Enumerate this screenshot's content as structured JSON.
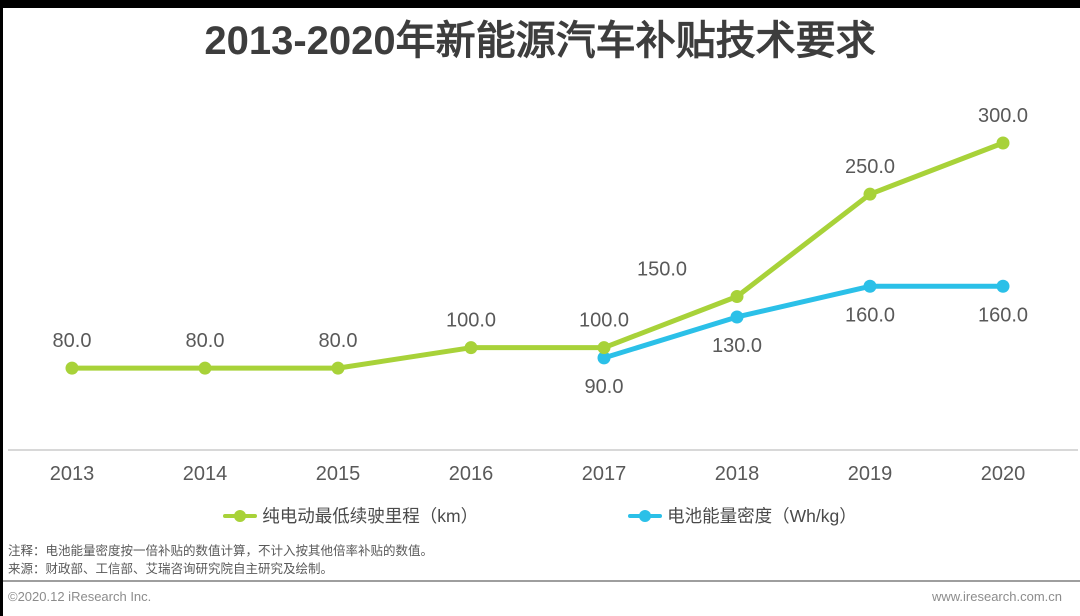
{
  "title": "2013-2020年新能源汽车补贴技术要求",
  "chart_data": {
    "type": "line",
    "title": "2013-2020年新能源汽车补贴技术要求",
    "categories": [
      "2013",
      "2014",
      "2015",
      "2016",
      "2017",
      "2018",
      "2019",
      "2020"
    ],
    "series": [
      {
        "name": "纯电动最低续驶里程（km）",
        "color": "#a8d239",
        "values": [
          80,
          80,
          80,
          100,
          100,
          150,
          250,
          300
        ],
        "labels": [
          "80.0",
          "80.0",
          "80.0",
          "100.0",
          "100.0",
          "150.0",
          "250.0",
          "300.0"
        ],
        "label_side": "above",
        "label_dx": [
          0,
          0,
          0,
          0,
          0,
          -75,
          0,
          0
        ]
      },
      {
        "name": "电池能量密度（Wh/kg）",
        "color": "#2bc0e8",
        "values": [
          null,
          null,
          null,
          null,
          90,
          130,
          160,
          160
        ],
        "labels": [
          null,
          null,
          null,
          null,
          "90.0",
          "130.0",
          "160.0",
          "160.0"
        ],
        "label_side": "below",
        "label_dx": [
          0,
          0,
          0,
          0,
          0,
          0,
          0,
          0
        ]
      }
    ],
    "xlabel": "",
    "ylabel": "",
    "ylim": [
      0,
      440
    ],
    "grid": false,
    "legend_position": "bottom"
  },
  "colors": {
    "axis_line": "#cccccc",
    "tick_label": "#595959",
    "data_label": "#595959",
    "title_text": "#3d3d3d",
    "series_green": "#a8d239",
    "series_blue": "#2bc0e8"
  },
  "notes": {
    "note": "注释：电池能量密度按一倍补贴的数值计算，不计入按其他倍率补贴的数值。",
    "source": "来源：财政部、工信部、艾瑞咨询研究院自主研究及绘制。"
  },
  "footer": {
    "copyright": "©2020.12 iResearch Inc.",
    "website": "www.iresearch.com.cn"
  }
}
